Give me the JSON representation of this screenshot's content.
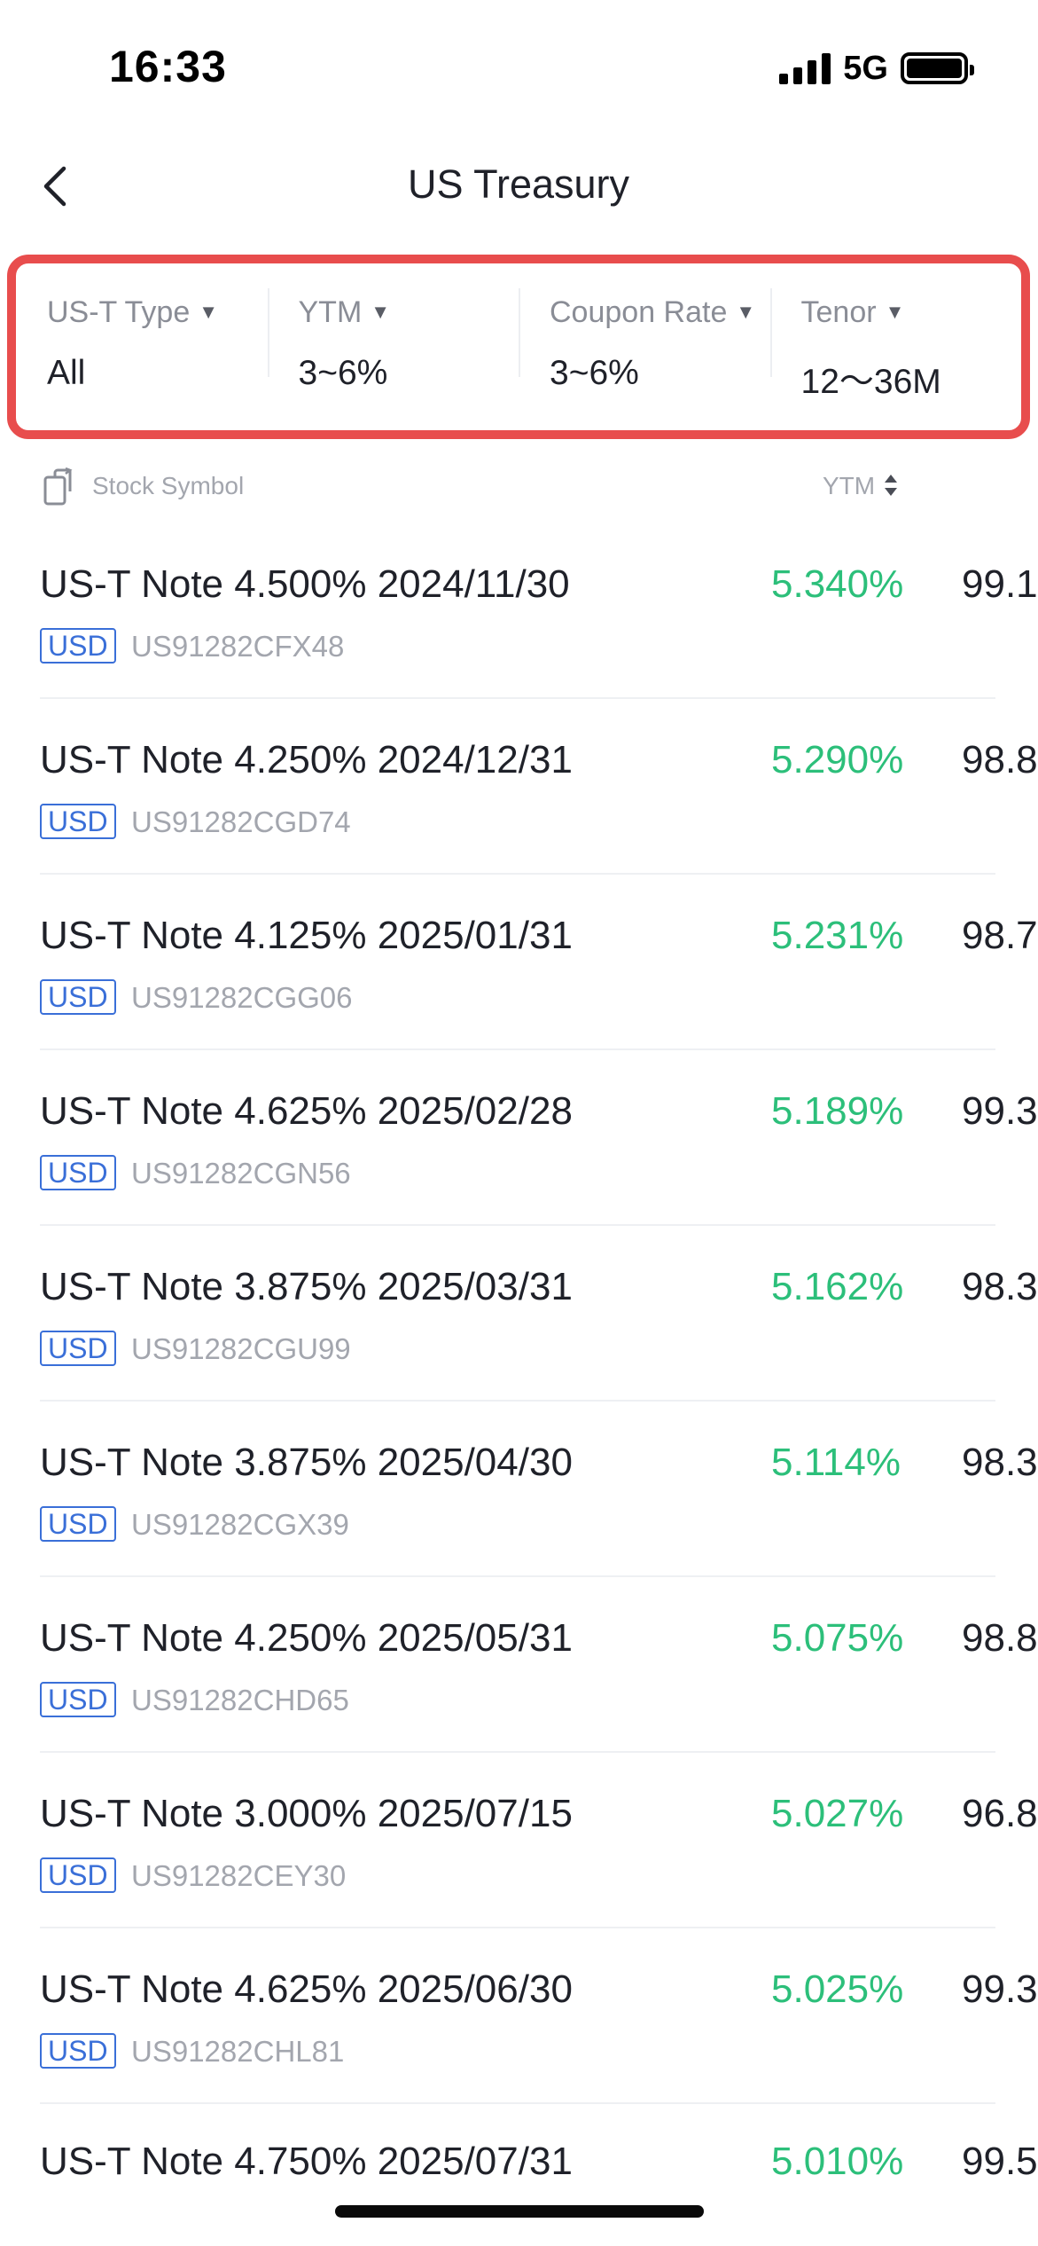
{
  "status_bar": {
    "time": "16:33",
    "network": "5G"
  },
  "nav": {
    "title": "US Treasury"
  },
  "filters": [
    {
      "label": "US-T Type",
      "value": "All"
    },
    {
      "label": "YTM",
      "value": "3~6%"
    },
    {
      "label": "Coupon Rate",
      "value": "3~6%"
    },
    {
      "label": "Tenor",
      "value": "12～36M"
    }
  ],
  "list_header": {
    "symbol": "Stock Symbol",
    "ytm": "YTM"
  },
  "rows": [
    {
      "name": "US-T Note 4.500% 2024/11/30",
      "currency": "USD",
      "isin": "US91282CFX48",
      "ytm": "5.340%",
      "price": "99.1"
    },
    {
      "name": "US-T Note 4.250% 2024/12/31",
      "currency": "USD",
      "isin": "US91282CGD74",
      "ytm": "5.290%",
      "price": "98.8"
    },
    {
      "name": "US-T Note 4.125% 2025/01/31",
      "currency": "USD",
      "isin": "US91282CGG06",
      "ytm": "5.231%",
      "price": "98.7"
    },
    {
      "name": "US-T Note 4.625% 2025/02/28",
      "currency": "USD",
      "isin": "US91282CGN56",
      "ytm": "5.189%",
      "price": "99.3"
    },
    {
      "name": "US-T Note 3.875% 2025/03/31",
      "currency": "USD",
      "isin": "US91282CGU99",
      "ytm": "5.162%",
      "price": "98.3"
    },
    {
      "name": "US-T Note 3.875% 2025/04/30",
      "currency": "USD",
      "isin": "US91282CGX39",
      "ytm": "5.114%",
      "price": "98.3"
    },
    {
      "name": "US-T Note 4.250% 2025/05/31",
      "currency": "USD",
      "isin": "US91282CHD65",
      "ytm": "5.075%",
      "price": "98.8"
    },
    {
      "name": "US-T Note 3.000% 2025/07/15",
      "currency": "USD",
      "isin": "US91282CEY30",
      "ytm": "5.027%",
      "price": "96.8"
    },
    {
      "name": "US-T Note 4.625% 2025/06/30",
      "currency": "USD",
      "isin": "US91282CHL81",
      "ytm": "5.025%",
      "price": "99.3"
    }
  ],
  "partial_row": {
    "name": "US-T Note 4.750% 2025/07/31",
    "ytm": "5.010%",
    "price": "99.5"
  },
  "colors": {
    "highlight_border": "#e84d4d",
    "ytm_green": "#2cbf7a",
    "currency_blue": "#3a6fd8"
  },
  "icons": {
    "back": "chevron-left-icon",
    "sort": "swap-icon",
    "ytm_sort": "sort-arrows-icon"
  }
}
